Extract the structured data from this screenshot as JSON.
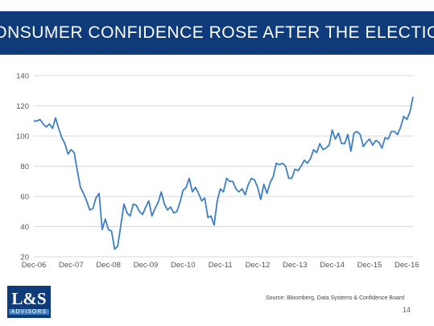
{
  "header": {
    "title": "CONSUMER CONFIDENCE ROSE AFTER THE ELECTION"
  },
  "logo": {
    "main": "L&S",
    "sub": "ADVISORS"
  },
  "footer": {
    "source": "Source: Bloomberg, Data Systems & Confidence Board",
    "page_number": "14"
  },
  "colors": {
    "banner": "#0f3b7a",
    "line": "#3d7fc4",
    "grid": "#d9d9d9"
  },
  "chart_data": {
    "type": "line",
    "title": "",
    "xlabel": "",
    "ylabel": "",
    "ylim": [
      20,
      140
    ],
    "yticks": [
      20,
      40,
      60,
      80,
      100,
      120,
      140
    ],
    "xticks": [
      "Dec-06",
      "Dec-07",
      "Dec-08",
      "Dec-09",
      "Dec-10",
      "Dec-11",
      "Dec-12",
      "Dec-13",
      "Dec-14",
      "Dec-15",
      "Dec-16"
    ],
    "x_start": "Dec-06",
    "x_end": "Mar-17",
    "frequency": "monthly",
    "grid": "horizontal",
    "legend": "none",
    "series": [
      {
        "values": [
          110,
          110,
          111,
          108,
          106,
          108,
          105,
          112,
          105,
          99,
          95,
          88,
          91,
          89,
          77,
          66,
          62,
          57,
          51,
          52,
          59,
          62,
          38,
          45,
          38,
          37,
          25,
          27,
          41,
          55,
          49,
          47,
          55,
          54,
          50,
          48,
          53,
          57,
          47,
          52,
          56,
          63,
          55,
          51,
          53,
          49,
          50,
          56,
          64,
          66,
          72,
          63,
          66,
          62,
          57,
          59,
          46,
          47,
          41,
          57,
          65,
          63,
          72,
          70,
          70,
          65,
          63,
          65,
          61,
          68,
          72,
          71,
          66,
          58,
          68,
          62,
          69,
          73,
          82,
          81,
          82,
          80,
          72,
          72,
          78,
          77,
          80,
          84,
          82,
          85,
          91,
          89,
          95,
          91,
          92,
          94,
          104,
          98,
          102,
          95,
          95,
          101,
          90,
          102,
          103,
          101,
          93,
          96,
          98,
          94,
          97,
          96,
          92,
          99,
          98,
          103,
          103,
          101,
          106,
          113,
          111,
          116,
          126
        ]
      }
    ]
  }
}
